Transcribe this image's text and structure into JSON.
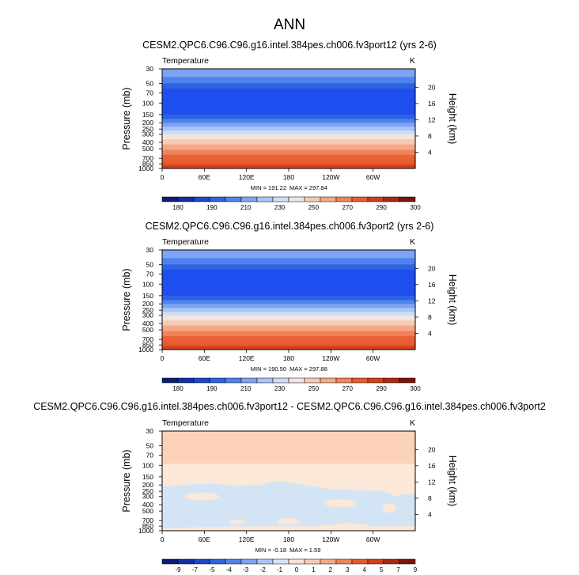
{
  "main_title": "ANN",
  "chart_data": [
    {
      "type": "heatmap",
      "title": "CESM2.QPC6.C96.C96.g16.intel.384pes.ch006.fv3port12 (yrs 2-6)",
      "variable": "Temperature",
      "units": "K",
      "ylabel": "Pressure (mb)",
      "y2label": "Height (km)",
      "x_ticks": [
        "0",
        "60E",
        "120E",
        "180",
        "120W",
        "60W"
      ],
      "y_ticks": [
        "30",
        "50",
        "70",
        "100",
        "150",
        "200",
        "250",
        "300",
        "400",
        "500",
        "700",
        "850",
        "1000"
      ],
      "y2_ticks": [
        "20",
        "16",
        "12",
        "8",
        "4"
      ],
      "min_label": "MIN = 191.22",
      "max_label": "MAX = 297.84",
      "colorbar_labels": [
        "180",
        "190",
        "210",
        "230",
        "250",
        "270",
        "290",
        "300"
      ],
      "colorbar_colors": [
        "#0b1e74",
        "#152ea3",
        "#1f47cc",
        "#2e63e0",
        "#4f82ec",
        "#7ea3f2",
        "#a9c4f6",
        "#cfdcf5",
        "#f1e6df",
        "#f6cbb4",
        "#f5a886",
        "#f1825a",
        "#e95a2e",
        "#d23f19",
        "#aa2910",
        "#7a1508"
      ],
      "levels": [
        {
          "p": 30,
          "color": "#7ea3f2"
        },
        {
          "p": 40,
          "color": "#4f82ec"
        },
        {
          "p": 50,
          "color": "#2e63e0"
        },
        {
          "p": 60,
          "color": "#1f4ef0"
        },
        {
          "p": 150,
          "color": "#2e63e0"
        },
        {
          "p": 175,
          "color": "#4f82ec"
        },
        {
          "p": 200,
          "color": "#7ea3f2"
        },
        {
          "p": 230,
          "color": "#a9c4f6"
        },
        {
          "p": 265,
          "color": "#cfdcf5"
        },
        {
          "p": 300,
          "color": "#f1e6df"
        },
        {
          "p": 360,
          "color": "#f6cbb4"
        },
        {
          "p": 430,
          "color": "#f5a886"
        },
        {
          "p": 520,
          "color": "#f1825a"
        },
        {
          "p": 620,
          "color": "#ea6136"
        },
        {
          "p": 760,
          "color": "#e95a2e"
        },
        {
          "p": 880,
          "color": "#d23f19"
        }
      ]
    },
    {
      "type": "heatmap",
      "title": "CESM2.QPC6.C96.C96.g16.intel.384pes.ch006.fv3port2 (yrs 2-6)",
      "variable": "Temperature",
      "units": "K",
      "ylabel": "Pressure (mb)",
      "y2label": "Height (km)",
      "x_ticks": [
        "0",
        "60E",
        "120E",
        "180",
        "120W",
        "60W"
      ],
      "y_ticks": [
        "30",
        "50",
        "70",
        "100",
        "150",
        "200",
        "250",
        "300",
        "400",
        "500",
        "700",
        "850",
        "1000"
      ],
      "y2_ticks": [
        "20",
        "16",
        "12",
        "8",
        "4"
      ],
      "min_label": "MIN = 190.50",
      "max_label": "MAX = 297.88",
      "colorbar_labels": [
        "180",
        "190",
        "210",
        "230",
        "250",
        "270",
        "290",
        "300"
      ],
      "colorbar_colors": [
        "#0b1e74",
        "#152ea3",
        "#1f47cc",
        "#2e63e0",
        "#4f82ec",
        "#7ea3f2",
        "#a9c4f6",
        "#cfdcf5",
        "#f1e6df",
        "#f6cbb4",
        "#f5a886",
        "#f1825a",
        "#e95a2e",
        "#d23f19",
        "#aa2910",
        "#7a1508"
      ],
      "levels": [
        {
          "p": 30,
          "color": "#7ea3f2"
        },
        {
          "p": 40,
          "color": "#4f82ec"
        },
        {
          "p": 50,
          "color": "#2e63e0"
        },
        {
          "p": 60,
          "color": "#1f4ef0"
        },
        {
          "p": 150,
          "color": "#2e63e0"
        },
        {
          "p": 175,
          "color": "#4f82ec"
        },
        {
          "p": 200,
          "color": "#7ea3f2"
        },
        {
          "p": 230,
          "color": "#a9c4f6"
        },
        {
          "p": 265,
          "color": "#cfdcf5"
        },
        {
          "p": 300,
          "color": "#f1e6df"
        },
        {
          "p": 360,
          "color": "#f6cbb4"
        },
        {
          "p": 430,
          "color": "#f5a886"
        },
        {
          "p": 520,
          "color": "#f1825a"
        },
        {
          "p": 620,
          "color": "#ea6136"
        },
        {
          "p": 760,
          "color": "#e95a2e"
        },
        {
          "p": 880,
          "color": "#d23f19"
        }
      ]
    },
    {
      "type": "heatmap",
      "title": "CESM2.QPC6.C96.C96.g16.intel.384pes.ch006.fv3port12 - CESM2.QPC6.C96.C96.g16.intel.384pes.ch006.fv3port2",
      "variable": "Temperature",
      "units": "K",
      "ylabel": "Pressure (mb)",
      "y2label": "Height (km)",
      "x_ticks": [
        "0",
        "60E",
        "120E",
        "180",
        "120W",
        "60W"
      ],
      "y_ticks": [
        "30",
        "50",
        "70",
        "100",
        "150",
        "200",
        "250",
        "300",
        "400",
        "500",
        "700",
        "850",
        "1000"
      ],
      "y2_ticks": [
        "20",
        "16",
        "12",
        "8",
        "4"
      ],
      "min_label": "MIN = -0.18",
      "max_label": "MAX = 1.59",
      "colorbar_labels": [
        "-9",
        "-7",
        "-5",
        "-4",
        "-3",
        "-2",
        "-1",
        "0",
        "1",
        "2",
        "3",
        "4",
        "5",
        "7",
        "9"
      ],
      "colorbar_colors": [
        "#0b1e74",
        "#152ea3",
        "#1f47cc",
        "#2e63e0",
        "#4f82ec",
        "#7ea3f2",
        "#a9c4f6",
        "#d3e5f5",
        "#fbe2cf",
        "#f6cbb4",
        "#f5a886",
        "#f1825a",
        "#e95a2e",
        "#d23f19",
        "#aa2910",
        "#7a1508"
      ],
      "levels": [
        {
          "p": 30,
          "color": "#fbd2b8"
        },
        {
          "p": 95,
          "color": "#fbe8d8"
        }
      ],
      "neg_color": "#d3e5f5",
      "pos_color": "#fbe8d8"
    }
  ]
}
